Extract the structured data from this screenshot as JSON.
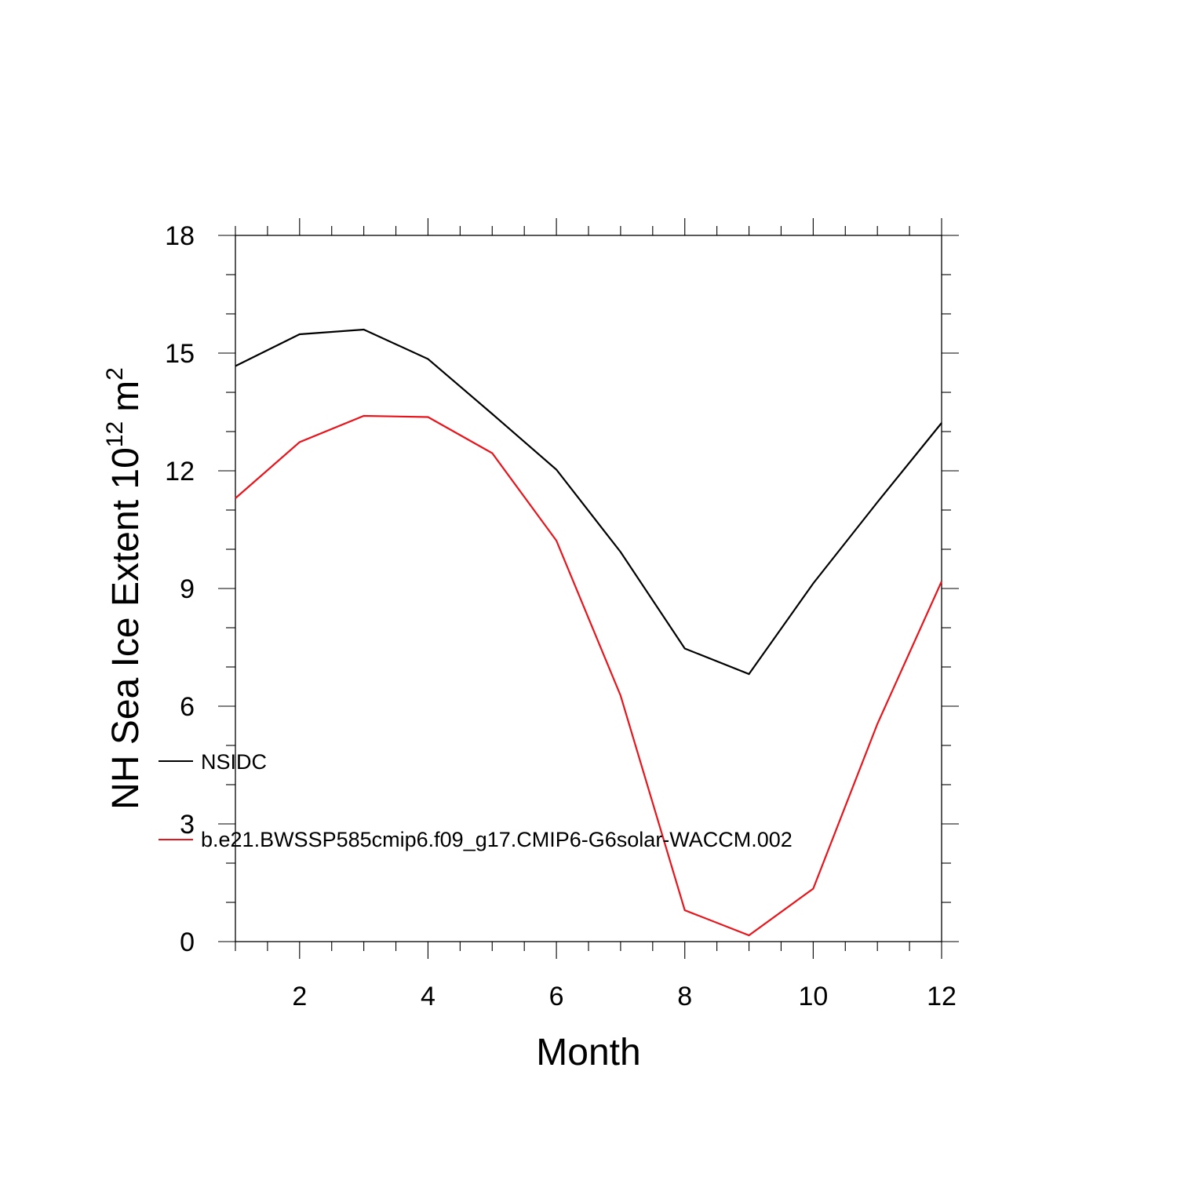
{
  "chart_data": {
    "type": "line",
    "title": "",
    "xlabel": "Month",
    "ylabel": {
      "main": "NH Sea Ice Extent 10",
      "exponent": "12",
      "unit": "m",
      "unit_exponent": "2"
    },
    "xlim": [
      1,
      12
    ],
    "ylim": [
      0,
      18
    ],
    "x_ticks": [
      2,
      4,
      6,
      8,
      10,
      12
    ],
    "y_ticks": [
      0,
      3,
      6,
      9,
      12,
      15,
      18
    ],
    "grid": false,
    "legend_placement": "left",
    "x": [
      1,
      2,
      3,
      4,
      5,
      6,
      7,
      8,
      9,
      10,
      11,
      12
    ],
    "series": [
      {
        "name": "NSIDC",
        "color": "#000000",
        "values": [
          14.67,
          15.48,
          15.6,
          14.85,
          13.45,
          12.03,
          9.93,
          7.47,
          6.82,
          9.13,
          11.2,
          13.22
        ]
      },
      {
        "name": "b.e21.BWSSP585cmip6.f09_g17.CMIP6-G6solar-WACCM.002",
        "color": "#e8141b",
        "values": [
          11.3,
          12.73,
          13.4,
          13.37,
          12.45,
          10.22,
          6.27,
          0.8,
          0.16,
          1.35,
          5.55,
          9.18
        ]
      }
    ]
  }
}
